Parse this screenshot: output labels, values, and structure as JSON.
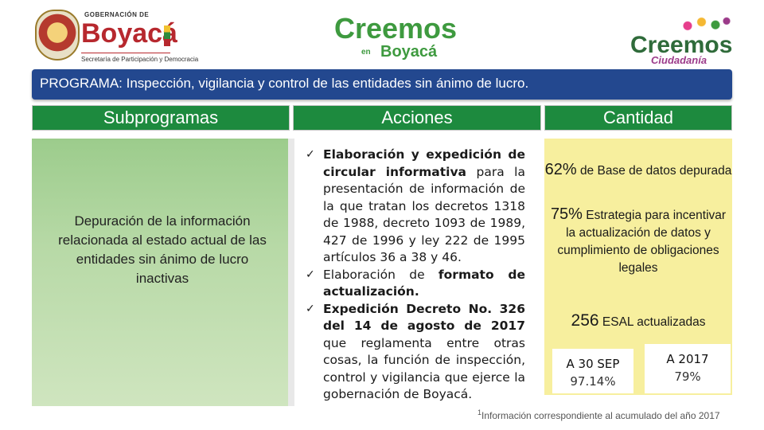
{
  "header": {
    "left_logo": {
      "gob_label": "GOBERNACIÓN DE",
      "name": "Boyacá",
      "secretaria": "Secretaría de Participación y Democracia"
    },
    "center_logo": {
      "line1": "Creemos",
      "line2": "en",
      "line3": "Boyacá"
    },
    "right_logo": {
      "line1": "Creemos",
      "line2": "Ciudadanía"
    }
  },
  "program": {
    "title": "PROGRAMA: Inspección, vigilancia  y control  de las entidades sin ánimo de lucro."
  },
  "columns": {
    "subprogramas": "Subprogramas",
    "acciones": "Acciones",
    "cantidad": "Cantidad"
  },
  "subprograma": {
    "text": "Depuración de la información relacionada al estado actual de las entidades sin ánimo de lucro inactivas"
  },
  "acciones": {
    "check": "✓",
    "a1_bold": "Elaboración y expedición de circular informativa",
    "a1_rest": " para la presentación de información de la que tratan los decretos 1318 de 1988, decreto 1093 de 1989, 427 de 1996 y ley 222 de 1995 artículos 36 a 38 y 46.",
    "a2_pre": "Elaboración de ",
    "a2_bold": "formato de actualización.",
    "a3_bold": "Expedición Decreto No. 326 del 14 de agosto de 2017",
    "a3_rest": " que reglamenta entre otras cosas, la función de inspección, control y vigilancia que ejerce la gobernación de Boyacá."
  },
  "cantidad": {
    "q1_value": "62%",
    "q1_text": "de Base de datos depurada",
    "q2_value": "75%",
    "q2_text": "Estrategia para incentivar la actualización de datos y cumplimiento de obligaciones legales",
    "q3_value": "256",
    "q3_text": "ESAL actualizadas",
    "box1_title": "A 30 SEP",
    "box1_value": "97.14%",
    "box2_title": "A 2017",
    "box2_value": "79%"
  },
  "footnote": {
    "marker": "1",
    "text": "Información correspondiente al acumulado del año 2017"
  }
}
